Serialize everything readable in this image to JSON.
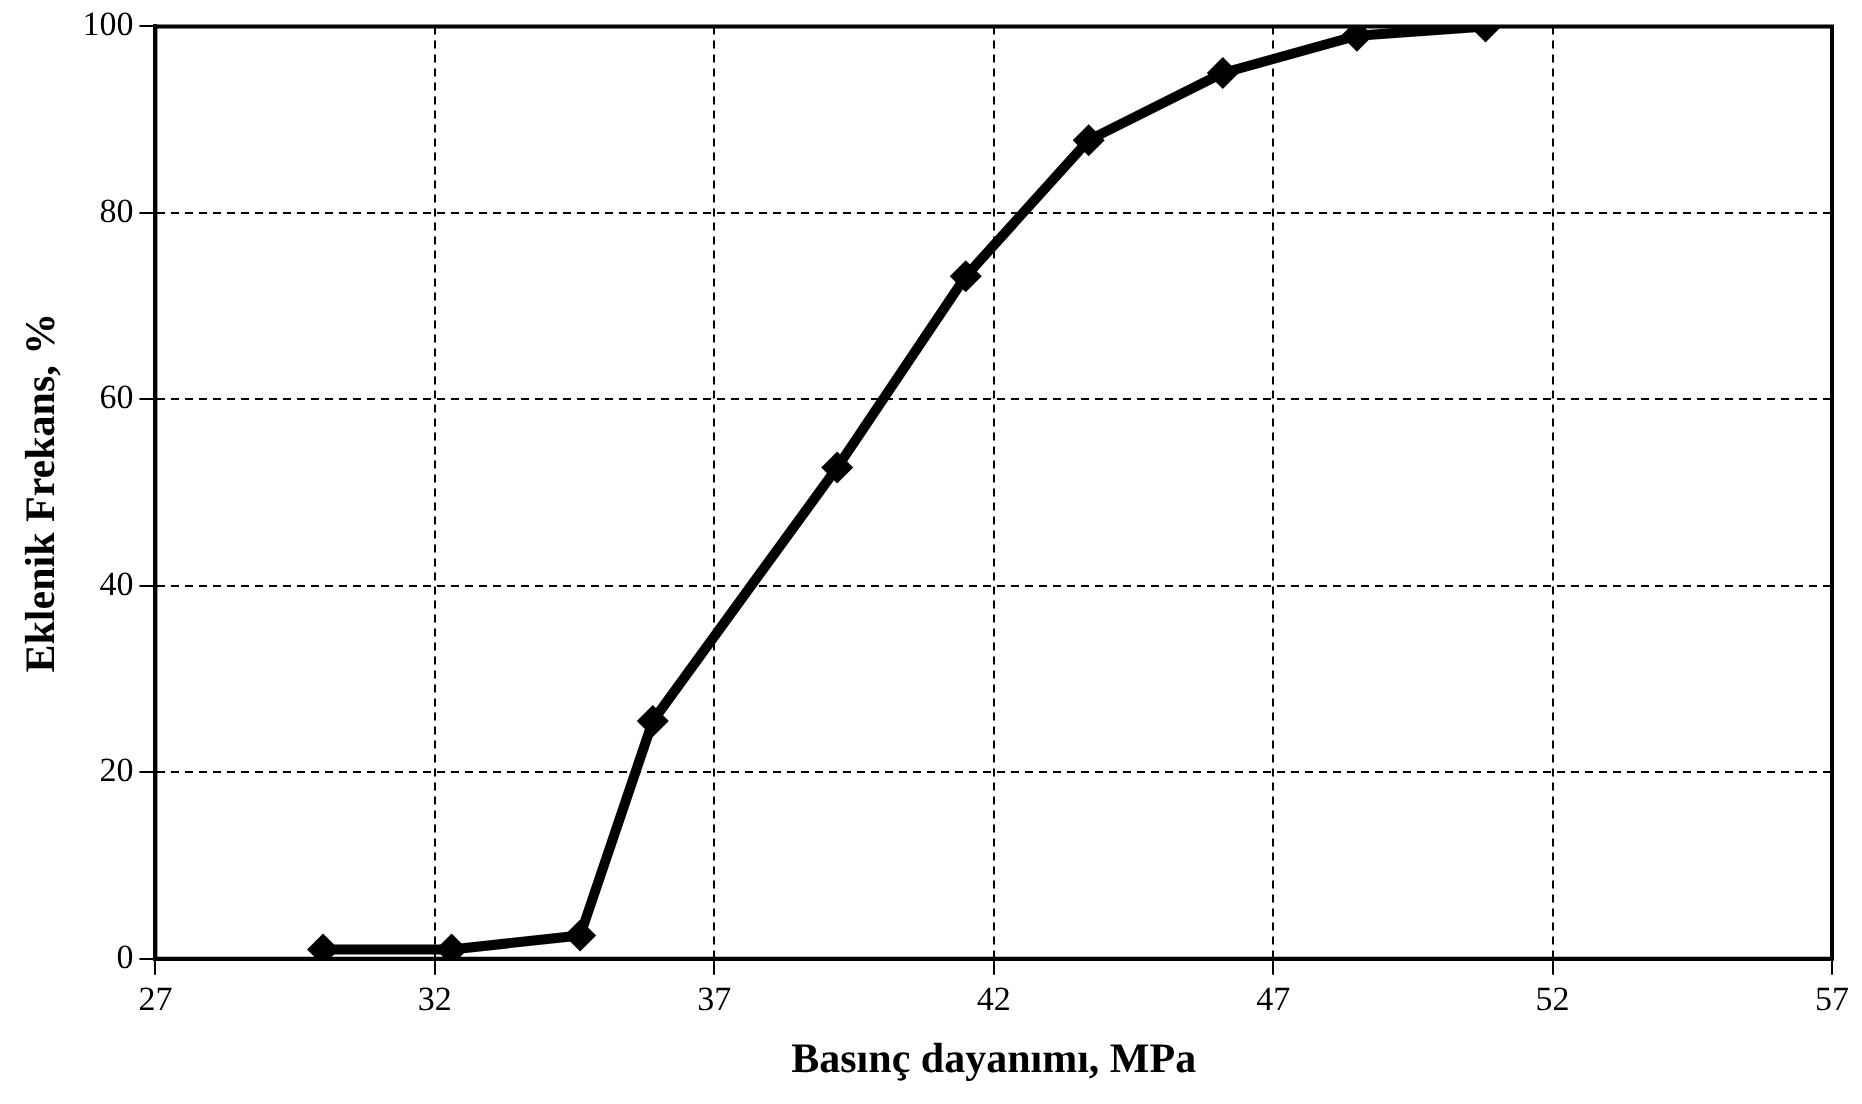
{
  "chart_data": {
    "type": "line",
    "xlabel": "Basınç dayanımı, MPa",
    "ylabel": "Eklenik Frekans, %",
    "x": [
      30.0,
      32.3,
      34.6,
      35.9,
      39.2,
      41.5,
      43.7,
      46.1,
      48.5,
      50.8
    ],
    "series": [
      {
        "color": "#000000",
        "values": [
          1,
          1,
          2.5,
          25.5,
          52.7,
          73.2,
          87.8,
          95,
          99,
          100
        ]
      }
    ],
    "xlim": [
      27,
      57
    ],
    "xticks": [
      27,
      32,
      37,
      42,
      47,
      52,
      57
    ],
    "ylim": [
      0,
      100
    ],
    "yticks": [
      0,
      20,
      40,
      60,
      80,
      100
    ],
    "grid": true,
    "legend": false,
    "marker": "diamond",
    "line_style": "solid"
  }
}
